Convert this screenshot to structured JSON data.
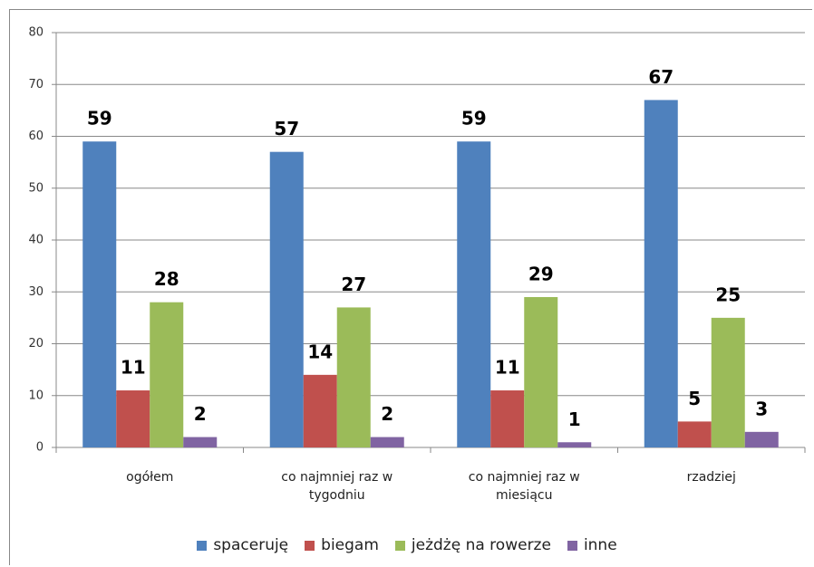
{
  "chart_data": {
    "type": "bar",
    "categories": [
      "ogółem",
      "co najmniej raz w tygodniu",
      "co najmniej raz w miesiącu",
      "rzadziej"
    ],
    "series": [
      {
        "name": "spaceruję",
        "color": "#4f81bd",
        "values": [
          59,
          57,
          59,
          67
        ]
      },
      {
        "name": "biegam",
        "color": "#c0504d",
        "values": [
          11,
          14,
          11,
          5
        ]
      },
      {
        "name": "jeżdżę na rowerze",
        "color": "#9bbb59",
        "values": [
          28,
          27,
          29,
          25
        ]
      },
      {
        "name": "inne",
        "color": "#8064a2",
        "values": [
          2,
          2,
          1,
          3
        ]
      }
    ],
    "ylim": [
      0,
      80
    ],
    "yticks": [
      0,
      10,
      20,
      30,
      40,
      50,
      60,
      70,
      80
    ],
    "grid": true,
    "legend": "bottom"
  }
}
